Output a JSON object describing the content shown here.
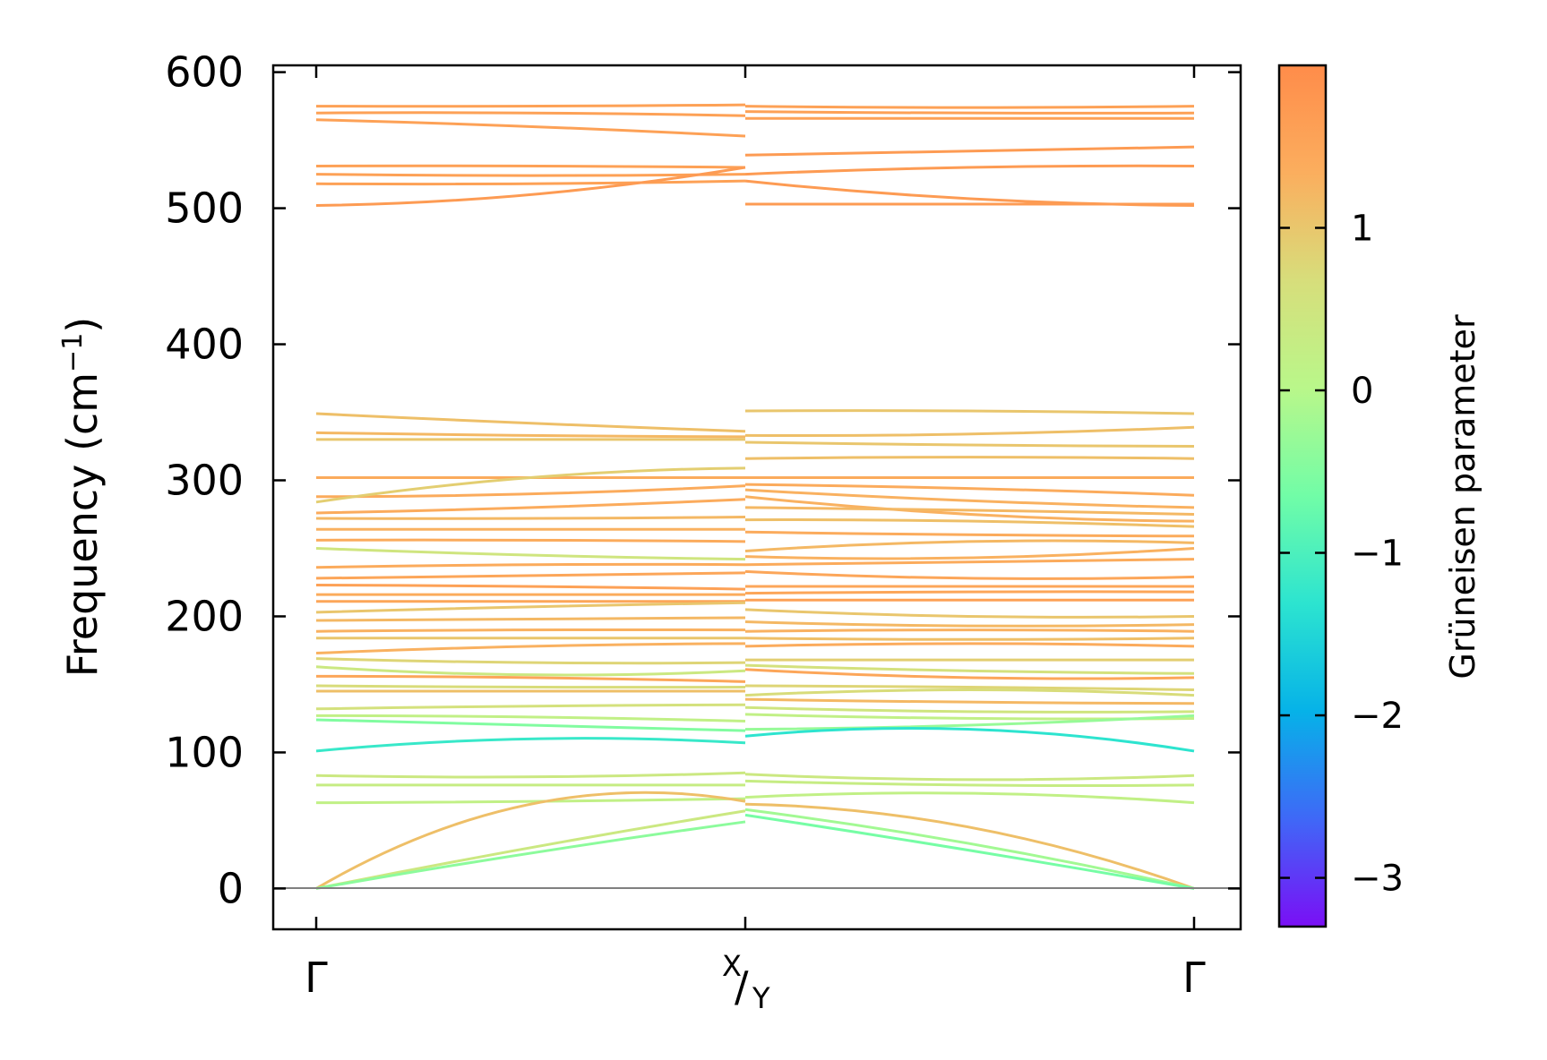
{
  "chart_data": {
    "type": "line",
    "title": "",
    "ylabel": "Frequency (cm",
    "ylabel_exp": "−1",
    "ylabel_close": ")",
    "ylim": [
      -30,
      605
    ],
    "yticks": [
      {
        "value": 0,
        "label": "0"
      },
      {
        "value": 100,
        "label": "100"
      },
      {
        "value": 200,
        "label": "200"
      },
      {
        "value": 300,
        "label": "300"
      },
      {
        "value": 400,
        "label": "400"
      },
      {
        "value": 500,
        "label": "500"
      },
      {
        "value": 600,
        "label": "600"
      }
    ],
    "x_labels": {
      "gamma_left": "Γ",
      "xy_top": "X",
      "xy_slash": "/",
      "xy_bottom": "Y",
      "gamma_right": "Γ"
    },
    "colorbar": {
      "title": "Grüneisen parameter",
      "range": [
        -3.3,
        2.0
      ],
      "ticks": [
        {
          "value": 1,
          "label": "1"
        },
        {
          "value": 0,
          "label": "0"
        },
        {
          "value": -1,
          "label": "−1"
        },
        {
          "value": -2,
          "label": "−2"
        },
        {
          "value": -3,
          "label": "−3"
        }
      ],
      "stops": [
        "#7a0ff5",
        "#3f68f7",
        "#06b2e8",
        "#2ce4d0",
        "#71fda7",
        "#b9f78a",
        "#d7de7b",
        "#fbae5e",
        "#ff8c4a"
      ]
    },
    "segments": [
      {
        "name": "Γ-X",
        "branches": [
          {
            "values": [
              575,
              575,
              576
            ],
            "g": 1.6
          },
          {
            "values": [
              570,
              570,
              568
            ],
            "g": 1.6
          },
          {
            "values": [
              565,
              560,
              553
            ],
            "g": 1.6
          },
          {
            "values": [
              531,
              531,
              530
            ],
            "g": 1.6
          },
          {
            "values": [
              525,
              524,
              525
            ],
            "g": 1.6
          },
          {
            "values": [
              518,
              518,
              520
            ],
            "g": 1.6
          },
          {
            "values": [
              502,
              510,
              530
            ],
            "g": 1.7
          },
          {
            "values": [
              349,
              342,
              336
            ],
            "g": 1.1
          },
          {
            "values": [
              335,
              333,
              332
            ],
            "g": 1.2
          },
          {
            "values": [
              330,
              330,
              330
            ],
            "g": 1.0
          },
          {
            "values": [
              302,
              302,
              302
            ],
            "g": 1.4
          },
          {
            "values": [
              288,
              290,
              296
            ],
            "g": 1.4
          },
          {
            "values": [
              284,
              302,
              309
            ],
            "g": 0.9
          },
          {
            "values": [
              276,
              280,
              286
            ],
            "g": 1.4
          },
          {
            "values": [
              272,
              272,
              273
            ],
            "g": 1.2
          },
          {
            "values": [
              264,
              264,
              264
            ],
            "g": 1.3
          },
          {
            "values": [
              256,
              256,
              255
            ],
            "g": 1.4
          },
          {
            "values": [
              250,
              245,
              242
            ],
            "g": 0.5
          },
          {
            "values": [
              236,
              238,
              238
            ],
            "g": 1.4
          },
          {
            "values": [
              228,
              230,
              232
            ],
            "g": 1.5
          },
          {
            "values": [
              223,
              222,
              220
            ],
            "g": 1.6
          },
          {
            "values": [
              216,
              216,
              216
            ],
            "g": 1.4
          },
          {
            "values": [
              211,
              211,
              211
            ],
            "g": 1.5
          },
          {
            "values": [
              203,
              207,
              210
            ],
            "g": 1.0
          },
          {
            "values": [
              197,
              198,
              199
            ],
            "g": 1.2
          },
          {
            "values": [
              189,
              190,
              190
            ],
            "g": 1.3
          },
          {
            "values": [
              184,
              184,
              184
            ],
            "g": 1.0
          },
          {
            "values": [
              173,
              178,
              180
            ],
            "g": 1.3
          },
          {
            "values": [
              169,
              166,
              166
            ],
            "g": 0.8
          },
          {
            "values": [
              163,
              157,
              160
            ],
            "g": 0.4
          },
          {
            "values": [
              156,
              155,
              152
            ],
            "g": 1.5
          },
          {
            "values": [
              149,
              148,
              148
            ],
            "g": 0.7
          },
          {
            "values": [
              145,
              145,
              145
            ],
            "g": 1.1
          },
          {
            "values": [
              132,
              134,
              135
            ],
            "g": 0.6
          },
          {
            "values": [
              127,
              126,
              123
            ],
            "g": 0.2
          },
          {
            "values": [
              124,
              120,
              116
            ],
            "g": -0.5
          },
          {
            "values": [
              101,
              110,
              107
            ],
            "g": -1.2
          },
          {
            "values": [
              83,
              82,
              85
            ],
            "g": 0.4
          },
          {
            "values": [
              76,
              76,
              76
            ],
            "g": 0.3
          },
          {
            "values": [
              63,
              64,
              66
            ],
            "g": 0.2
          },
          {
            "values": [
              0,
              62,
              64
            ],
            "g": 1.1
          },
          {
            "values": [
              0,
              30,
              57
            ],
            "g": 0.4
          },
          {
            "values": [
              0,
              26,
              49
            ],
            "g": -0.4
          }
        ]
      },
      {
        "name": "Y-Γ",
        "branches": [
          {
            "values": [
              575,
              574,
              575
            ],
            "g": 1.6
          },
          {
            "values": [
              571,
              570,
              570
            ],
            "g": 1.6
          },
          {
            "values": [
              566,
              566,
              566
            ],
            "g": 1.6
          },
          {
            "values": [
              539,
              542,
              545
            ],
            "g": 1.7
          },
          {
            "values": [
              525,
              530,
              531
            ],
            "g": 1.7
          },
          {
            "values": [
              520,
              507,
              502
            ],
            "g": 1.7
          },
          {
            "values": [
              503,
              503,
              503
            ],
            "g": 1.7
          },
          {
            "values": [
              351,
              351,
              349
            ],
            "g": 1.0
          },
          {
            "values": [
              333,
              334,
              339
            ],
            "g": 1.1
          },
          {
            "values": [
              328,
              326,
              325
            ],
            "g": 1.0
          },
          {
            "values": [
              316,
              317,
              316
            ],
            "g": 1.1
          },
          {
            "values": [
              302,
              302,
              302
            ],
            "g": 1.4
          },
          {
            "values": [
              297,
              294,
              289
            ],
            "g": 1.4
          },
          {
            "values": [
              293,
              285,
              280
            ],
            "g": 1.3
          },
          {
            "values": [
              288,
              275,
              270
            ],
            "g": 1.3
          },
          {
            "values": [
              280,
              278,
              275
            ],
            "g": 1.2
          },
          {
            "values": [
              271,
              270,
              266
            ],
            "g": 1.1
          },
          {
            "values": [
              262,
              260,
              259
            ],
            "g": 1.4
          },
          {
            "values": [
              248,
              255,
              254
            ],
            "g": 1.2
          },
          {
            "values": [
              244,
              243,
              250
            ],
            "g": 1.3
          },
          {
            "values": [
              238,
              240,
              242
            ],
            "g": 1.4
          },
          {
            "values": [
              233,
              228,
              229
            ],
            "g": 1.5
          },
          {
            "values": [
              222,
              222,
              222
            ],
            "g": 1.5
          },
          {
            "values": [
              217,
              218,
              218
            ],
            "g": 1.5
          },
          {
            "values": [
              212,
              212,
              212
            ],
            "g": 1.6
          },
          {
            "values": [
              205,
              200,
              200
            ],
            "g": 1.0
          },
          {
            "values": [
              196,
              193,
              194
            ],
            "g": 1.2
          },
          {
            "values": [
              189,
              190,
              189
            ],
            "g": 1.3
          },
          {
            "values": [
              184,
              183,
              184
            ],
            "g": 1.1
          },
          {
            "values": [
              178,
              180,
              178
            ],
            "g": 1.4
          },
          {
            "values": [
              168,
              168,
              168
            ],
            "g": 0.9
          },
          {
            "values": [
              164,
              160,
              158
            ],
            "g": 0.6
          },
          {
            "values": [
              161,
              155,
              155
            ],
            "g": 1.5
          },
          {
            "values": [
              149,
              148,
              146
            ],
            "g": 0.8
          },
          {
            "values": [
              142,
              146,
              142
            ],
            "g": 0.7
          },
          {
            "values": [
              139,
              137,
              136
            ],
            "g": 1.2
          },
          {
            "values": [
              133,
              130,
              130
            ],
            "g": 0.5
          },
          {
            "values": [
              128,
              125,
              125
            ],
            "g": 0.2
          },
          {
            "values": [
              117,
              120,
              127
            ],
            "g": -0.3
          },
          {
            "values": [
              112,
              117,
              101
            ],
            "g": -1.3
          },
          {
            "values": [
              84,
              80,
              83
            ],
            "g": 0.4
          },
          {
            "values": [
              79,
              76,
              76
            ],
            "g": 0.3
          },
          {
            "values": [
              67,
              70,
              63
            ],
            "g": 0.2
          },
          {
            "values": [
              62,
              45,
              0
            ],
            "g": 1.1
          },
          {
            "values": [
              58,
              33,
              0
            ],
            "g": -0.2
          },
          {
            "values": [
              54,
              28,
              0
            ],
            "g": -0.6
          }
        ]
      }
    ]
  }
}
